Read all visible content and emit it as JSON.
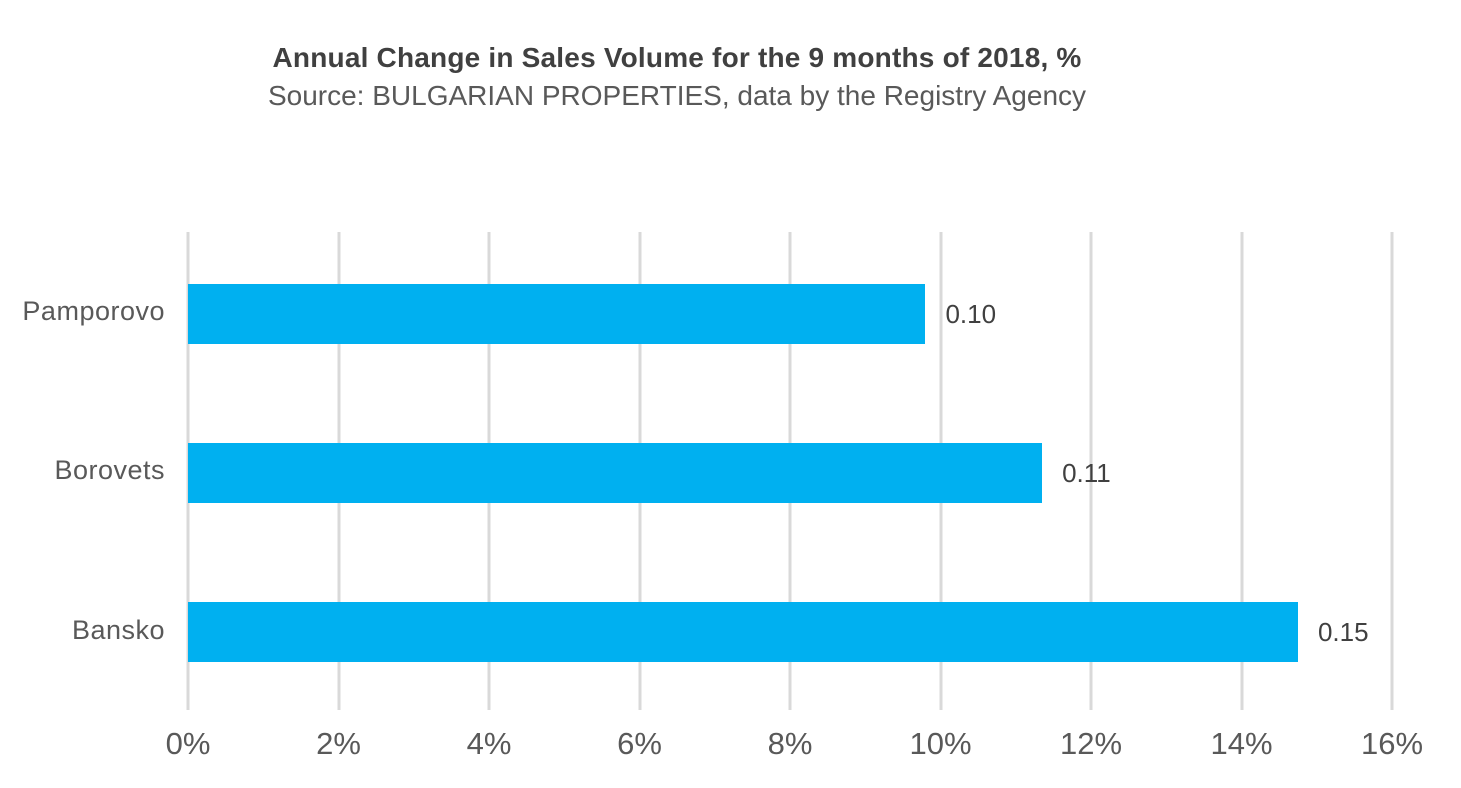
{
  "page": {
    "background": "#FFFFFF"
  },
  "header": {
    "title": "Annual Change in Sales Volume for the 9 months of 2018, %",
    "subtitle": "Source: BULGARIAN PROPERTIES, data by the Registry Agency"
  },
  "colors": {
    "bar": "#00B0F0",
    "title_text": "#404040",
    "subtitle_text": "#595959",
    "category_label_text": "#595959",
    "axis_tick_text": "#595959",
    "data_label_text": "#404040",
    "gridline": "#D9D9D9",
    "background": "#FFFFFF"
  },
  "chart_data": {
    "type": "bar",
    "orientation": "horizontal",
    "title": "Annual Change in Sales Volume for the 9 months of 2018, %",
    "subtitle": "Source: BULGARIAN PROPERTIES, data by the Registry Agency",
    "categories": [
      "Pamporovo",
      "Borovets",
      "Bansko"
    ],
    "values_percent": [
      9.8,
      11.35,
      14.75
    ],
    "data_labels": [
      "0.10",
      "0.11",
      "0.15"
    ],
    "x_axis_ticks": [
      "0%",
      "2%",
      "4%",
      "6%",
      "8%",
      "10%",
      "12%",
      "14%",
      "16%"
    ],
    "xlim": [
      0,
      16
    ],
    "xlabel": "",
    "ylabel": "",
    "legend": "none",
    "grid": "vertical-gridlines-only"
  }
}
